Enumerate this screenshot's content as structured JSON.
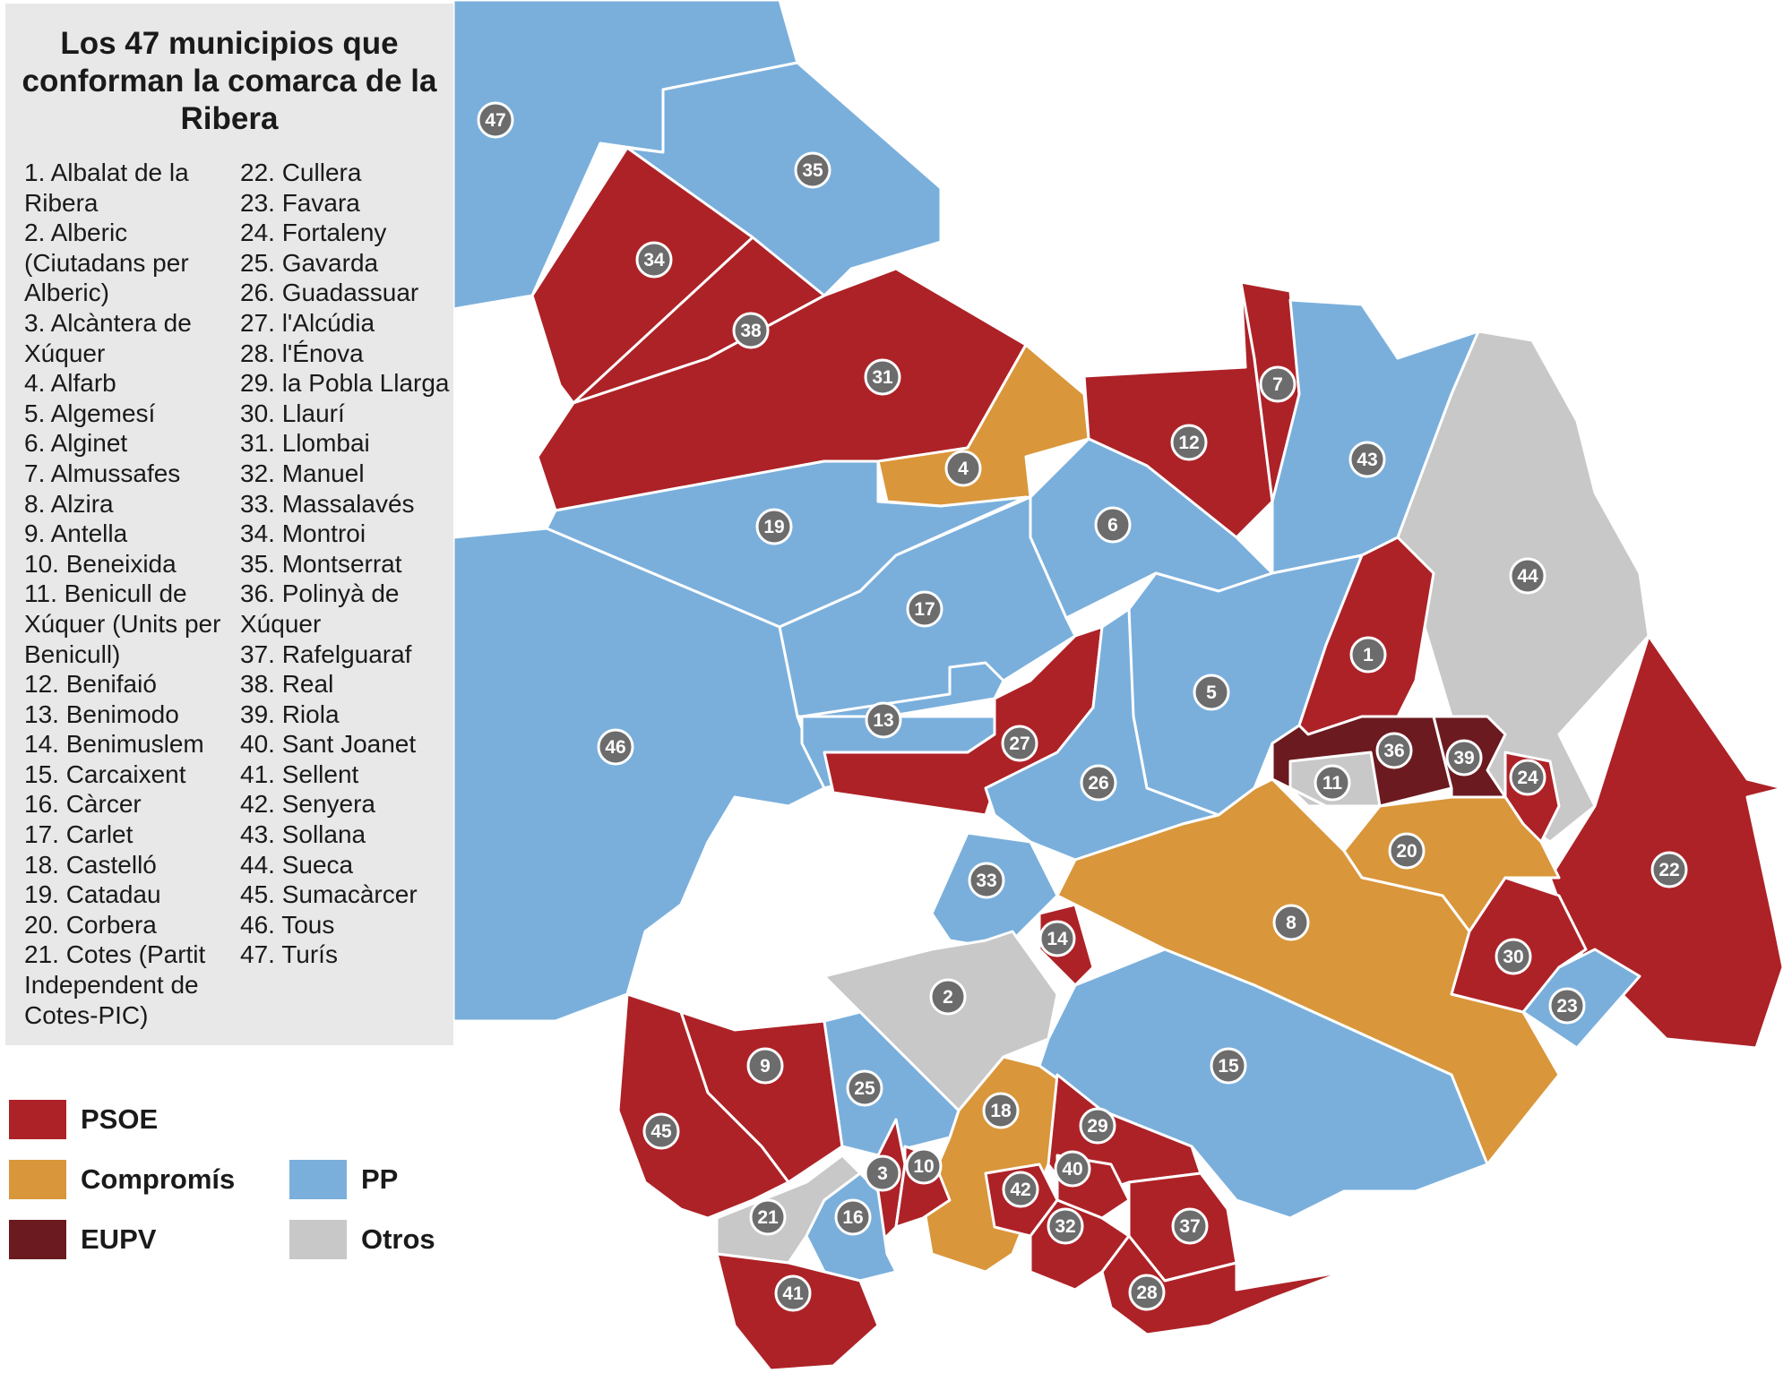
{
  "title": "Los 47 municipios que conforman la comarca de la Ribera",
  "colors": {
    "PSOE": "#ad2227",
    "Compromís": "#d9963a",
    "EUPV": "#6b1a20",
    "PP": "#7aafdc",
    "Otros": "#c8c8c8",
    "marker": "#6c6c6c",
    "panel": "#e8e8e8"
  },
  "municipalities_left": [
    "1. Albalat de la Ribera",
    "2. Alberic (Ciutadans per Alberic)",
    "3. Alcàntera de Xúquer",
    "4. Alfarb",
    "5. Algemesí",
    "6. Alginet",
    "7. Almussafes",
    "8. Alzira",
    "9. Antella",
    "10. Beneixida",
    "11. Benicull de Xúquer (Units per Benicull)",
    "12. Benifaió",
    "13. Benimodo",
    "14. Benimuslem",
    "15. Carcaixent",
    "16. Càrcer",
    "17. Carlet",
    "18. Castelló",
    "19. Catadau",
    "20. Corbera",
    "21. Cotes (Partit Independent de Cotes-PIC)"
  ],
  "municipalities_right": [
    "22. Cullera",
    "23. Favara",
    "24. Fortaleny",
    "25. Gavarda",
    "26. Guadassuar",
    "27. l'Alcúdia",
    "28. l'Énova",
    "29. la Pobla Llarga",
    "30. Llaurí",
    "31. Llombai",
    "32. Manuel",
    "33. Massalavés",
    "34. Montroi",
    "35. Montserrat",
    "36. Polinyà de Xúquer",
    "37. Rafelguaraf",
    "38. Real",
    "39. Riola",
    "40. Sant Joanet",
    "41. Sellent",
    "42. Senyera",
    "43. Sollana",
    "44. Sueca",
    "45. Sumacàrcer",
    "46. Tous",
    "47. Turís"
  ],
  "legend": [
    {
      "label": "PSOE",
      "color": "#ad2227"
    },
    {
      "label": "Compromís",
      "color": "#d9963a"
    },
    {
      "label": "EUPV",
      "color": "#6b1a20"
    },
    {
      "label": "PP",
      "color": "#7aafdc"
    },
    {
      "label": "Otros",
      "color": "#c8c8c8"
    }
  ],
  "map_regions": [
    {
      "number": "47",
      "party": "PP"
    },
    {
      "number": "35",
      "party": "PP"
    },
    {
      "number": "34",
      "party": "PSOE"
    },
    {
      "number": "38",
      "party": "PSOE"
    },
    {
      "number": "31",
      "party": "PSOE"
    },
    {
      "number": "4",
      "party": "Compromís"
    },
    {
      "number": "12",
      "party": "PSOE"
    },
    {
      "number": "7",
      "party": "PSOE"
    },
    {
      "number": "43",
      "party": "PP"
    },
    {
      "number": "44",
      "party": "Otros"
    },
    {
      "number": "19",
      "party": "PP"
    },
    {
      "number": "6",
      "party": "PP"
    },
    {
      "number": "17",
      "party": "PP"
    },
    {
      "number": "46",
      "party": "PP"
    },
    {
      "number": "13",
      "party": "PP"
    },
    {
      "number": "27",
      "party": "PSOE"
    },
    {
      "number": "5",
      "party": "PP"
    },
    {
      "number": "1",
      "party": "PSOE"
    },
    {
      "number": "26",
      "party": "PP"
    },
    {
      "number": "36",
      "party": "EUPV"
    },
    {
      "number": "39",
      "party": "EUPV"
    },
    {
      "number": "11",
      "party": "Otros"
    },
    {
      "number": "24",
      "party": "PSOE"
    },
    {
      "number": "22",
      "party": "PSOE"
    },
    {
      "number": "20",
      "party": "Compromís"
    },
    {
      "number": "8",
      "party": "Compromís"
    },
    {
      "number": "33",
      "party": "PP"
    },
    {
      "number": "14",
      "party": "PSOE"
    },
    {
      "number": "30",
      "party": "PSOE"
    },
    {
      "number": "23",
      "party": "PP"
    },
    {
      "number": "2",
      "party": "Otros"
    },
    {
      "number": "15",
      "party": "PP"
    },
    {
      "number": "9",
      "party": "PSOE"
    },
    {
      "number": "45",
      "party": "PSOE"
    },
    {
      "number": "25",
      "party": "PP"
    },
    {
      "number": "18",
      "party": "Compromís"
    },
    {
      "number": "29",
      "party": "PSOE"
    },
    {
      "number": "3",
      "party": "PSOE"
    },
    {
      "number": "10",
      "party": "PSOE"
    },
    {
      "number": "40",
      "party": "PSOE"
    },
    {
      "number": "42",
      "party": "PSOE"
    },
    {
      "number": "21",
      "party": "Otros"
    },
    {
      "number": "16",
      "party": "PP"
    },
    {
      "number": "32",
      "party": "PSOE"
    },
    {
      "number": "37",
      "party": "PSOE"
    },
    {
      "number": "41",
      "party": "PSOE"
    },
    {
      "number": "28",
      "party": "PSOE"
    }
  ]
}
